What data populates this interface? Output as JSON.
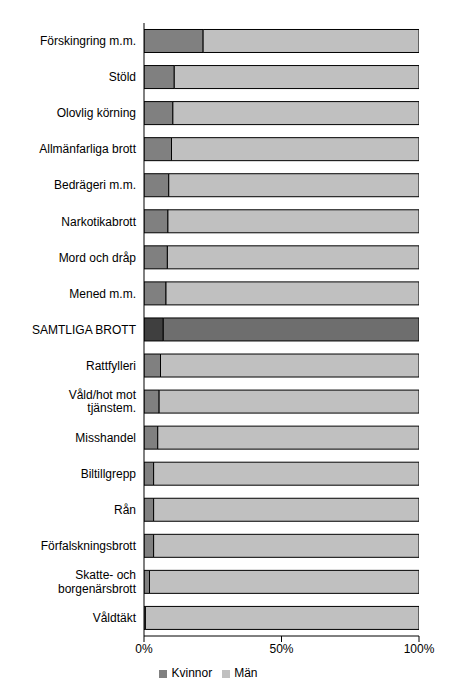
{
  "chart_data": {
    "type": "bar",
    "orientation": "horizontal",
    "stacked": true,
    "grid": false,
    "legend": "bottom",
    "data_labels": false,
    "categories": [
      "Förskingring m.m.",
      "Stöld",
      "Olovlig körning",
      "Allmänfarliga brott",
      "Bedrägeri m.m.",
      "Narkotikabrott",
      "Mord och dråp",
      "Mened m.m.",
      "SAMTLIGA BROTT",
      "Rattfylleri",
      "Våld/hot mot tjänstem.",
      "Misshandel",
      "Biltillgrepp",
      "Rån",
      "Förfalskningsbrott",
      "Skatte- och borgenärsbrott",
      "Våldtäkt"
    ],
    "series": [
      {
        "name": "Kvinnor",
        "color": "#808080",
        "colors": [
          "#808080",
          "#808080",
          "#808080",
          "#808080",
          "#808080",
          "#808080",
          "#808080",
          "#808080",
          "#3f3f3f",
          "#808080",
          "#808080",
          "#808080",
          "#808080",
          "#808080",
          "#808080",
          "#808080",
          "#808080"
        ],
        "values": [
          21.5,
          11,
          10.5,
          10,
          9,
          8.7,
          8.5,
          8,
          7,
          6,
          5.5,
          5,
          3.5,
          3.5,
          3.5,
          2,
          0.5
        ]
      },
      {
        "name": "Män",
        "color": "#c0c0c0",
        "colors": [
          "#c0c0c0",
          "#c0c0c0",
          "#c0c0c0",
          "#c0c0c0",
          "#c0c0c0",
          "#c0c0c0",
          "#c0c0c0",
          "#c0c0c0",
          "#6e6e6e",
          "#c0c0c0",
          "#c0c0c0",
          "#c0c0c0",
          "#c0c0c0",
          "#c0c0c0",
          "#c0c0c0",
          "#c0c0c0",
          "#c0c0c0"
        ],
        "values": [
          78.5,
          89,
          89.5,
          90,
          91,
          91.3,
          91.5,
          92,
          93,
          94,
          94.5,
          95,
          96.5,
          96.5,
          96.5,
          98,
          99.5
        ]
      }
    ],
    "xlim": [
      0,
      100
    ],
    "xticks": [
      {
        "value": 0,
        "label": "0%"
      },
      {
        "value": 50,
        "label": "50%"
      },
      {
        "value": 100,
        "label": "100%"
      }
    ]
  }
}
